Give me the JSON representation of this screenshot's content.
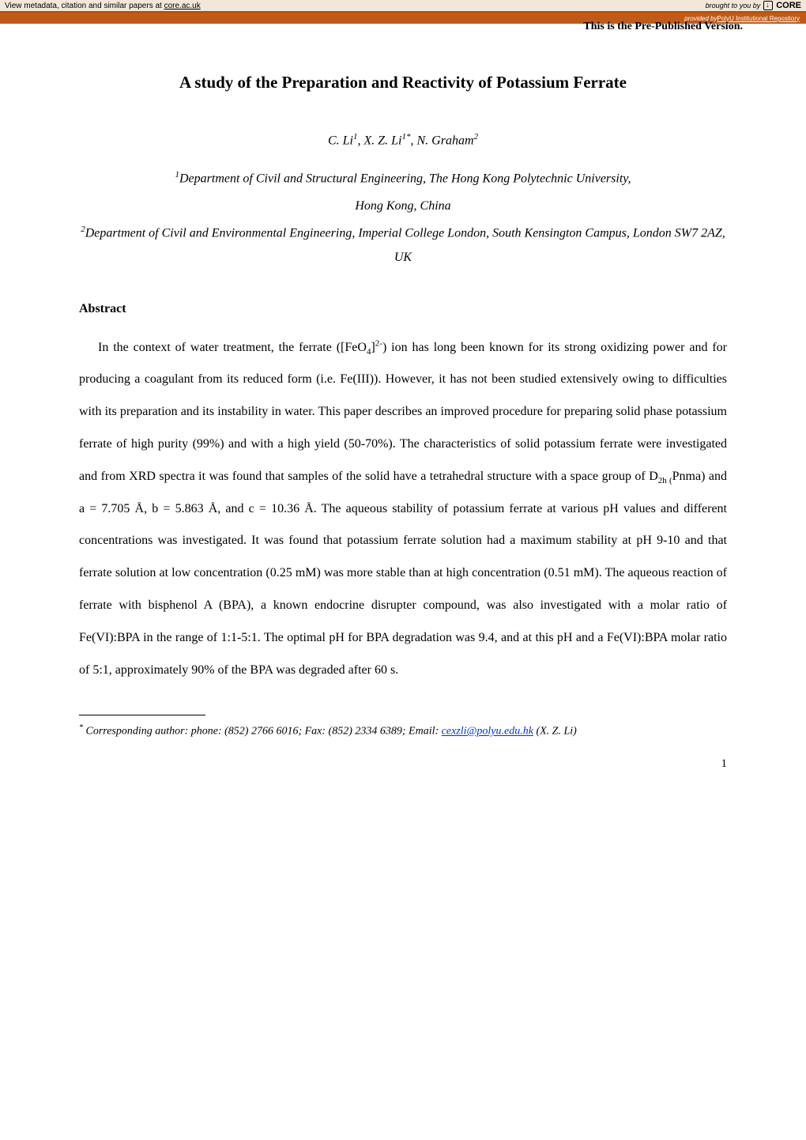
{
  "banner": {
    "metadata_prefix": "View metadata, citation and similar papers at ",
    "metadata_link": "core.ac.uk",
    "brought_to_you": "brought to you by",
    "core_label": "CORE",
    "provided_by_prefix": "provided by ",
    "provided_by_link": "PolyU Institutional Repository"
  },
  "prepublished": "This is the Pre-Published Version.",
  "title": "A study of the Preparation and Reactivity of Potassium Ferrate",
  "authors_html": "C. Li<sup>1</sup>, X. Z. Li<sup>1*</sup>, N. Graham<sup>2</sup>",
  "affiliations": [
    "<sup>1</sup>Department of Civil and Structural Engineering, The Hong Kong Polytechnic University,",
    "Hong Kong, China",
    "<sup>2</sup>Department of Civil and Environmental Engineering, Imperial College London, South Kensington Campus, London SW7 2AZ, UK"
  ],
  "abstract_heading": "Abstract",
  "abstract_html": "In the context of water treatment, the ferrate ([FeO<sub>4</sub>]<sup>2-</sup>) ion has long been known for its strong oxidizing power and for producing a coagulant from its reduced form (i.e. Fe(III)). However, it has not been studied extensively owing to difficulties with its preparation and its instability in water. This paper describes an improved procedure for preparing solid phase potassium ferrate of high purity (99%) and with a high yield (50-70%). The characteristics of solid potassium ferrate were investigated and from XRD spectra it was found that samples of the solid have a tetrahedral structure with a space group of D<sub>2h (</sub>Pnma) and a = 7.705 Å, b = 5.863 Å, and c = 10.36 Å. The aqueous stability of potassium ferrate at various pH values and different concentrations was investigated. It was found that potassium ferrate solution had a maximum stability at pH 9-10 and that ferrate solution at low concentration (0.25 mM) was more stable than at high concentration (0.51 mM). The aqueous reaction of ferrate with bisphenol A (BPA), a known endocrine disrupter compound, was also investigated with a molar ratio of Fe(VI):BPA in the range of 1:1-5:1. The optimal pH for BPA degradation was 9.4, and at this pH and a Fe(VI):BPA molar ratio of 5:1, approximately 90% of the BPA was degraded after 60 s.",
  "footnote": {
    "marker": "*",
    "text_prefix": " Corresponding author: phone: (852) 2766 6016; Fax: (852) 2334 6389; Email: ",
    "email": "cexzli@polyu.edu.hk",
    "text_suffix": " (X. Z. Li)"
  },
  "page_number": "1"
}
